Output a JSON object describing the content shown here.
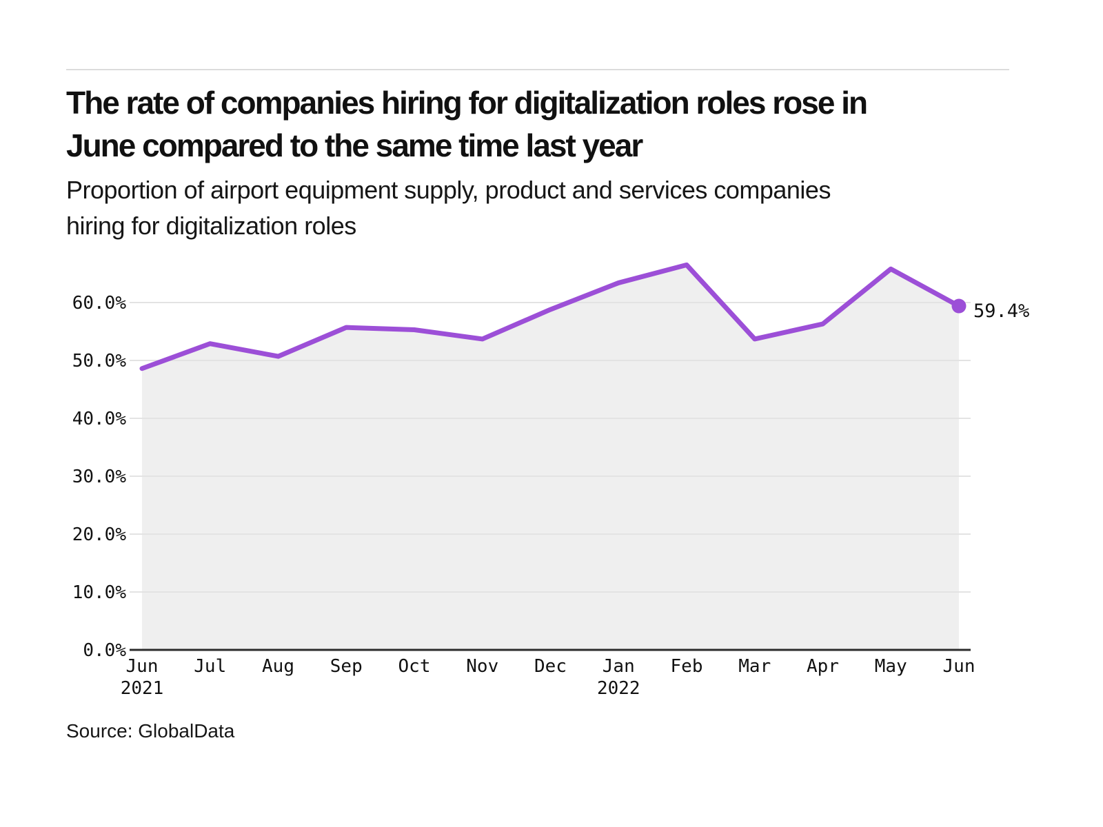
{
  "header": {
    "title_line1": "The rate of companies hiring for digitalization roles rose in",
    "title_line2": "June compared to the same time last year",
    "subtitle_line1": "Proportion of airport equipment supply, product and services companies",
    "subtitle_line2": "hiring for digitalization roles"
  },
  "chart_data": {
    "type": "area",
    "title": "The rate of companies hiring for digitalization roles rose in June compared to the same time last year",
    "subtitle": "Proportion of airport equipment supply, product and services companies hiring for digitalization roles",
    "categories": [
      "Jun",
      "Jul",
      "Aug",
      "Sep",
      "Oct",
      "Nov",
      "Dec",
      "Jan",
      "Feb",
      "Mar",
      "Apr",
      "May",
      "Jun"
    ],
    "year_labels": [
      {
        "index": 0,
        "label": "2021"
      },
      {
        "index": 7,
        "label": "2022"
      }
    ],
    "values": [
      48.6,
      52.9,
      50.7,
      55.7,
      55.3,
      53.7,
      58.8,
      63.4,
      66.5,
      53.7,
      56.3,
      65.8,
      59.4
    ],
    "y_ticks": [
      {
        "value": 0,
        "label": "0.0%"
      },
      {
        "value": 10,
        "label": "10.0%"
      },
      {
        "value": 20,
        "label": "20.0%"
      },
      {
        "value": 30,
        "label": "30.0%"
      },
      {
        "value": 40,
        "label": "40.0%"
      },
      {
        "value": 50,
        "label": "50.0%"
      },
      {
        "value": 60,
        "label": "60.0%"
      }
    ],
    "ylim": [
      0,
      70
    ],
    "xlabel": "",
    "ylabel": "",
    "grid": true,
    "legend": false,
    "end_label": "59.4%",
    "colors": {
      "line": "#9C4FD7",
      "area": "#EFEFEF",
      "grid": "#E3E3E3",
      "axis": "#2B2B2B",
      "text": "#111111"
    }
  },
  "footer": {
    "source": "Source: GlobalData"
  }
}
